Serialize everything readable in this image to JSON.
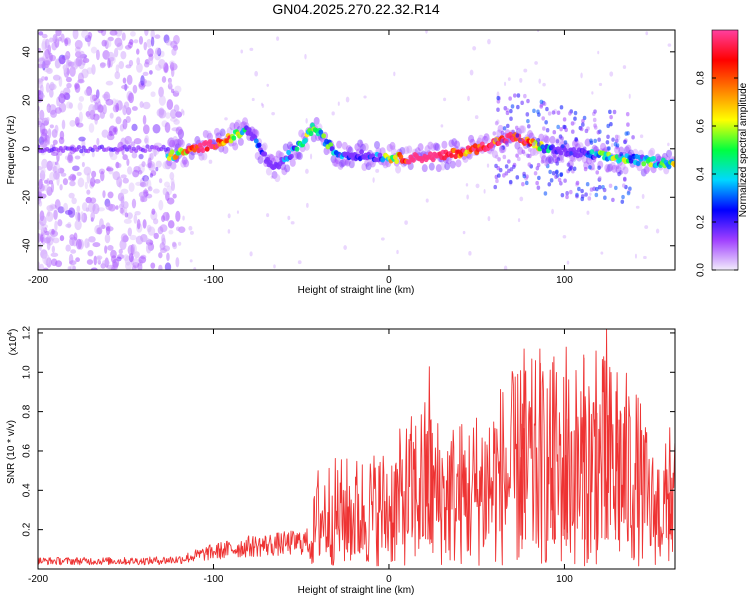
{
  "chart_data": [
    {
      "type": "heatmap",
      "title": "GN04.2025.270.22.32.R14",
      "xlabel": "Height of straight line (km)",
      "ylabel": "Frequency (Hz)",
      "xlim": [
        -200,
        163
      ],
      "ylim": [
        -50,
        49
      ],
      "xticks": [
        -200,
        -100,
        0,
        100
      ],
      "yticks": [
        -40,
        -20,
        0,
        20,
        40
      ],
      "xtick_labels": [
        "-200",
        "-100",
        "0",
        "100"
      ],
      "ytick_labels": [
        "-40",
        "-20",
        "0",
        "20",
        "40"
      ],
      "ridge": [
        {
          "x": -125,
          "y": -3
        },
        {
          "x": -110,
          "y": 0
        },
        {
          "x": -95,
          "y": 3
        },
        {
          "x": -80,
          "y": 8
        },
        {
          "x": -66,
          "y": -9
        },
        {
          "x": -50,
          "y": 2
        },
        {
          "x": -43,
          "y": 9
        },
        {
          "x": -30,
          "y": -2
        },
        {
          "x": -10,
          "y": -3
        },
        {
          "x": 10,
          "y": -4
        },
        {
          "x": 30,
          "y": -3
        },
        {
          "x": 50,
          "y": 0
        },
        {
          "x": 70,
          "y": 5
        },
        {
          "x": 90,
          "y": 0
        },
        {
          "x": 120,
          "y": -3
        },
        {
          "x": 160,
          "y": -6
        }
      ],
      "colorbar": {
        "label": "Normalized spectral amplitude",
        "range": [
          0,
          1
        ],
        "ticks": [
          "0.0",
          "0.2",
          "0.4",
          "0.6",
          "0.8"
        ],
        "tick_values": [
          0,
          0.2,
          0.4,
          0.6,
          0.8
        ],
        "colors": [
          "#f2ecfb",
          "#a040ff",
          "#0000ff",
          "#00d8ff",
          "#00ff40",
          "#ffff00",
          "#ff8000",
          "#ff0000",
          "#ff40a0"
        ]
      }
    },
    {
      "type": "line",
      "xlabel": "Height of straight line (km)",
      "ylabel": "SNR (10 * v/v)",
      "scale_label": "(x10",
      "scale_exp": "4",
      "scale_close": ")",
      "xlim": [
        -200,
        163
      ],
      "ylim": [
        0,
        12200
      ],
      "xticks": [
        -200,
        -100,
        0,
        100
      ],
      "yticks": [
        2000,
        4000,
        6000,
        8000,
        10000,
        12000
      ],
      "xtick_labels": [
        "-200",
        "-100",
        "0",
        "100"
      ],
      "ytick_labels": [
        "0.2",
        "0.4",
        "0.6",
        "0.8",
        "1.0",
        "1.2"
      ],
      "color": "#ee3333",
      "series": [
        {
          "name": "SNR",
          "envelope": [
            {
              "x": -200,
              "y": 600
            },
            {
              "x": -140,
              "y": 600
            },
            {
              "x": -120,
              "y": 700
            },
            {
              "x": -100,
              "y": 1300
            },
            {
              "x": -80,
              "y": 1700
            },
            {
              "x": -60,
              "y": 1900
            },
            {
              "x": -45,
              "y": 2100
            },
            {
              "x": -40,
              "y": 5500
            },
            {
              "x": -20,
              "y": 5600
            },
            {
              "x": 0,
              "y": 6200
            },
            {
              "x": 20,
              "y": 8700
            },
            {
              "x": 30,
              "y": 7500
            },
            {
              "x": 45,
              "y": 7600
            },
            {
              "x": 60,
              "y": 9200
            },
            {
              "x": 80,
              "y": 10600
            },
            {
              "x": 100,
              "y": 10400
            },
            {
              "x": 120,
              "y": 11000
            },
            {
              "x": 140,
              "y": 9600
            },
            {
              "x": 150,
              "y": 6000
            },
            {
              "x": 163,
              "y": 6600
            }
          ],
          "peaks": [
            {
              "x": 23,
              "y": 10300
            },
            {
              "x": 75,
              "y": 10100
            },
            {
              "x": 77,
              "y": 11200
            },
            {
              "x": 86,
              "y": 11200
            },
            {
              "x": 94,
              "y": 10800
            },
            {
              "x": 101,
              "y": 11300
            },
            {
              "x": 111,
              "y": 10900
            },
            {
              "x": 118,
              "y": 11100
            },
            {
              "x": 124,
              "y": 12200
            },
            {
              "x": 130,
              "y": 10000
            },
            {
              "x": 160,
              "y": 7200
            }
          ]
        }
      ]
    }
  ]
}
